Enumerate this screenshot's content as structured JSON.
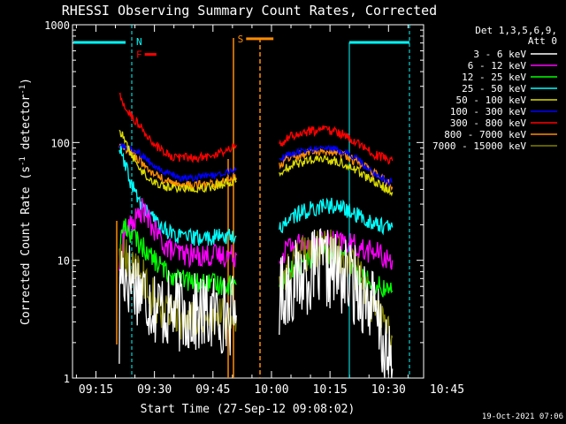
{
  "chart_data": {
    "type": "line",
    "title": "RHESSI Observing Summary Count Rates, Corrected",
    "xlabel": "Start Time (27-Sep-12 09:08:02)",
    "ylabel": "Corrected Count Rate (s⁻¹ detector⁻¹)",
    "ylabel_parts": [
      "Corrected Count Rate (s",
      "-1",
      " detector",
      "-1",
      ")"
    ],
    "yscale": "log",
    "ylim": [
      1,
      1000
    ],
    "yticks": [
      {
        "value": 1,
        "label": "1"
      },
      {
        "value": 10,
        "label": "10"
      },
      {
        "value": 100,
        "label": "100"
      },
      {
        "value": 1000,
        "label": "1000"
      }
    ],
    "xlim_minutes": [
      9.0,
      99.0
    ],
    "xticks": [
      {
        "value": 15,
        "label": "09:15"
      },
      {
        "value": 30,
        "label": "09:30"
      },
      {
        "value": 45,
        "label": "09:45"
      },
      {
        "value": 60,
        "label": "10:00"
      },
      {
        "value": 75,
        "label": "10:15"
      },
      {
        "value": 90,
        "label": "10:30"
      },
      {
        "value": 105,
        "label": "10:45"
      }
    ],
    "legend_header": [
      "Det 1,3,5,6,9,",
      "Att 0"
    ],
    "legend_position": "right",
    "series": [
      {
        "name": "3 - 6 keV",
        "color": "#ffffff",
        "points": [
          [
            21.0,
            2
          ],
          [
            21.2,
            9
          ],
          [
            22,
            8
          ],
          [
            24,
            7
          ],
          [
            26,
            6
          ],
          [
            28,
            5
          ],
          [
            30,
            4.2
          ],
          [
            33,
            3.8
          ],
          [
            36,
            3.6
          ],
          [
            40,
            3.5
          ],
          [
            44,
            3.5
          ],
          [
            48,
            3.5
          ],
          [
            51,
            3.4
          ],
          [
            null,
            null
          ],
          [
            62,
            5
          ],
          [
            64,
            6
          ],
          [
            67,
            7
          ],
          [
            70,
            8
          ],
          [
            73,
            8.5
          ],
          [
            76,
            8
          ],
          [
            79,
            7
          ],
          [
            82,
            6
          ],
          [
            84,
            5
          ],
          [
            86,
            4
          ],
          [
            87,
            3
          ],
          [
            88,
            2.5
          ],
          [
            89,
            1.5
          ],
          [
            91,
            1.2
          ]
        ]
      },
      {
        "name": "6 - 12 keV",
        "color": "#ff00ff",
        "points": [
          [
            21.0,
            9
          ],
          [
            22,
            16
          ],
          [
            24,
            20
          ],
          [
            26,
            24
          ],
          [
            27,
            28
          ],
          [
            28,
            23
          ],
          [
            30,
            18
          ],
          [
            33,
            13
          ],
          [
            36,
            11.5
          ],
          [
            40,
            11
          ],
          [
            44,
            11
          ],
          [
            48,
            11
          ],
          [
            51,
            11
          ],
          [
            null,
            null
          ],
          [
            62,
            10
          ],
          [
            64,
            13
          ],
          [
            67,
            14
          ],
          [
            70,
            14
          ],
          [
            73,
            14.5
          ],
          [
            76,
            14.5
          ],
          [
            79,
            14
          ],
          [
            82,
            13
          ],
          [
            84,
            12
          ],
          [
            86,
            12
          ],
          [
            88,
            11
          ],
          [
            90,
            10
          ],
          [
            91,
            10
          ]
        ]
      },
      {
        "name": "12 - 25 keV",
        "color": "#00ff00",
        "points": [
          [
            21.0,
            12
          ],
          [
            22,
            20
          ],
          [
            24,
            17
          ],
          [
            26,
            14
          ],
          [
            28,
            12
          ],
          [
            30,
            10
          ],
          [
            33,
            8
          ],
          [
            36,
            7
          ],
          [
            40,
            6.5
          ],
          [
            44,
            6.3
          ],
          [
            48,
            6.2
          ],
          [
            51,
            6.2
          ],
          [
            null,
            null
          ],
          [
            62,
            6
          ],
          [
            64,
            7.5
          ],
          [
            67,
            9
          ],
          [
            70,
            10.5
          ],
          [
            73,
            11.5
          ],
          [
            76,
            11
          ],
          [
            79,
            10
          ],
          [
            82,
            8
          ],
          [
            84,
            7
          ],
          [
            86,
            6.5
          ],
          [
            88,
            6
          ],
          [
            90,
            5.5
          ],
          [
            91,
            5.5
          ]
        ]
      },
      {
        "name": "25 - 50 keV",
        "color": "#00ffff",
        "points": [
          [
            21.0,
            90
          ],
          [
            22,
            70
          ],
          [
            24,
            45
          ],
          [
            26,
            32
          ],
          [
            28,
            26
          ],
          [
            30,
            22
          ],
          [
            33,
            18
          ],
          [
            36,
            16
          ],
          [
            40,
            15.5
          ],
          [
            44,
            15.5
          ],
          [
            48,
            16
          ],
          [
            51,
            16
          ],
          [
            null,
            null
          ],
          [
            62,
            18
          ],
          [
            64,
            22
          ],
          [
            67,
            25
          ],
          [
            70,
            27
          ],
          [
            73,
            29
          ],
          [
            76,
            29
          ],
          [
            79,
            27
          ],
          [
            82,
            24
          ],
          [
            84,
            22
          ],
          [
            86,
            21
          ],
          [
            88,
            20
          ],
          [
            90,
            19
          ],
          [
            91,
            19
          ]
        ]
      },
      {
        "name": "50 - 100 keV",
        "color": "#dddd00",
        "points": [
          [
            21.0,
            130
          ],
          [
            22,
            110
          ],
          [
            24,
            80
          ],
          [
            26,
            62
          ],
          [
            28,
            52
          ],
          [
            30,
            46
          ],
          [
            33,
            42
          ],
          [
            36,
            41
          ],
          [
            40,
            41
          ],
          [
            44,
            42
          ],
          [
            48,
            45
          ],
          [
            51,
            47
          ],
          [
            null,
            null
          ],
          [
            62,
            55
          ],
          [
            64,
            62
          ],
          [
            67,
            67
          ],
          [
            70,
            70
          ],
          [
            73,
            72
          ],
          [
            76,
            70
          ],
          [
            79,
            65
          ],
          [
            82,
            58
          ],
          [
            84,
            52
          ],
          [
            86,
            47
          ],
          [
            88,
            43
          ],
          [
            90,
            40
          ],
          [
            91,
            38
          ]
        ]
      },
      {
        "name": "100 - 300 keV",
        "color": "#0000ff",
        "points": [
          [
            21.0,
            92
          ],
          [
            22,
            92
          ],
          [
            24,
            88
          ],
          [
            26,
            82
          ],
          [
            28,
            72
          ],
          [
            30,
            62
          ],
          [
            33,
            55
          ],
          [
            36,
            50
          ],
          [
            40,
            50
          ],
          [
            44,
            52
          ],
          [
            48,
            55
          ],
          [
            51,
            60
          ],
          [
            null,
            null
          ],
          [
            62,
            72
          ],
          [
            64,
            78
          ],
          [
            67,
            83
          ],
          [
            70,
            87
          ],
          [
            73,
            90
          ],
          [
            76,
            88
          ],
          [
            79,
            82
          ],
          [
            82,
            72
          ],
          [
            84,
            63
          ],
          [
            86,
            56
          ],
          [
            88,
            50
          ],
          [
            90,
            47
          ],
          [
            91,
            46
          ]
        ]
      },
      {
        "name": "300 - 800 keV",
        "color": "#ff0000",
        "points": [
          [
            21.0,
            260
          ],
          [
            22,
            205
          ],
          [
            24,
            170
          ],
          [
            26,
            140
          ],
          [
            28,
            115
          ],
          [
            30,
            95
          ],
          [
            33,
            80
          ],
          [
            36,
            74
          ],
          [
            40,
            74
          ],
          [
            44,
            77
          ],
          [
            48,
            84
          ],
          [
            51,
            95
          ],
          [
            null,
            null
          ],
          [
            62,
            95
          ],
          [
            64,
            110
          ],
          [
            67,
            120
          ],
          [
            70,
            125
          ],
          [
            73,
            128
          ],
          [
            76,
            125
          ],
          [
            79,
            115
          ],
          [
            82,
            100
          ],
          [
            84,
            88
          ],
          [
            86,
            80
          ],
          [
            88,
            75
          ],
          [
            90,
            72
          ],
          [
            91,
            70
          ]
        ]
      },
      {
        "name": "800 - 7000 keV",
        "color": "#ff8c00",
        "points": [
          [
            21.0,
            90
          ],
          [
            22,
            88
          ],
          [
            24,
            85
          ],
          [
            26,
            72
          ],
          [
            28,
            60
          ],
          [
            30,
            53
          ],
          [
            33,
            47
          ],
          [
            36,
            43
          ],
          [
            40,
            43
          ],
          [
            44,
            44
          ],
          [
            48,
            46
          ],
          [
            51,
            50
          ],
          [
            null,
            null
          ],
          [
            62,
            65
          ],
          [
            64,
            72
          ],
          [
            67,
            78
          ],
          [
            70,
            82
          ],
          [
            73,
            85
          ],
          [
            76,
            83
          ],
          [
            79,
            78
          ],
          [
            82,
            68
          ],
          [
            84,
            62
          ],
          [
            86,
            55
          ],
          [
            88,
            50
          ],
          [
            90,
            45
          ],
          [
            91,
            42
          ]
        ]
      },
      {
        "name": "7000 - 15000 keV",
        "color": "#808000",
        "points": [
          [
            21.0,
            12
          ],
          [
            22,
            11
          ],
          [
            24,
            9
          ],
          [
            26,
            8
          ],
          [
            28,
            6
          ],
          [
            30,
            4.5
          ],
          [
            33,
            3.5
          ],
          [
            36,
            3.2
          ],
          [
            40,
            3.2
          ],
          [
            44,
            3.2
          ],
          [
            48,
            3.2
          ],
          [
            51,
            3.2
          ],
          [
            null,
            null
          ],
          [
            62,
            6
          ],
          [
            64,
            8
          ],
          [
            67,
            10
          ],
          [
            70,
            12
          ],
          [
            73,
            12.5
          ],
          [
            76,
            12
          ],
          [
            79,
            10
          ],
          [
            82,
            8
          ],
          [
            84,
            6
          ],
          [
            86,
            4
          ],
          [
            88,
            3
          ],
          [
            90,
            2.5
          ],
          [
            91,
            2.2
          ]
        ]
      }
    ],
    "annotations": [
      {
        "label": "F",
        "color": "#ff0000",
        "x_start_min": 27.5,
        "x_end_min": 30.5,
        "value": 560
      },
      {
        "label": "N",
        "color": "#00ffff",
        "x_start_min": 27.5,
        "x_end_min": 27.5,
        "value": 720
      },
      {
        "label": "S",
        "color": "#ff8c00",
        "x_start_min": 53.5,
        "x_end_min": 60.5,
        "value": 760
      }
    ]
  },
  "footer": {
    "timestamp": "19-Oct-2021 07:06"
  }
}
